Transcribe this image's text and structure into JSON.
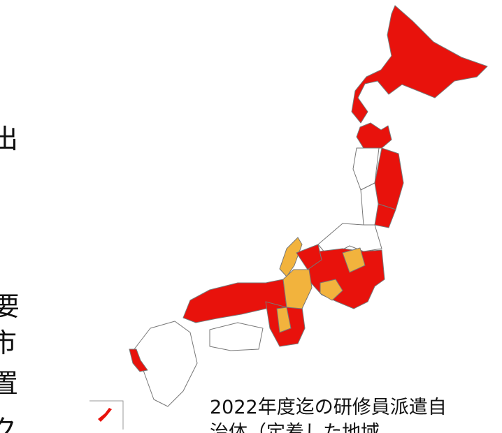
{
  "side_text": [
    "出",
    "要",
    "市",
    "置",
    "ク"
  ],
  "caption": [
    "2022年度迄の研修員派遣自",
    "治体（定着した地域"
  ]
}
